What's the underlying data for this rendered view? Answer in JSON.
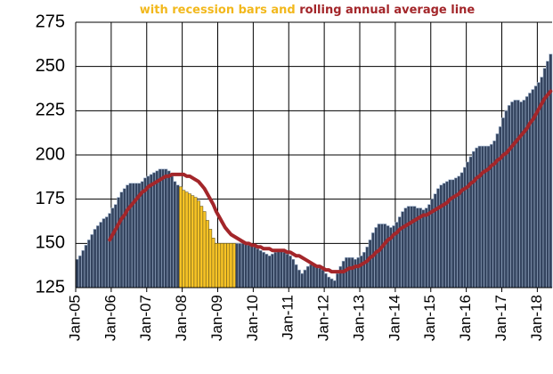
{
  "chart_data": {
    "type": "bar",
    "title": [
      {
        "text": "with recession bars and",
        "color": "#f2b81c"
      },
      {
        "text": "rolling annual average line",
        "color": "#a3262a"
      }
    ],
    "categories": [
      "Jan-05",
      null,
      null,
      null,
      null,
      null,
      null,
      null,
      null,
      null,
      null,
      null,
      "Jan-06",
      null,
      null,
      null,
      null,
      null,
      null,
      null,
      null,
      null,
      null,
      null,
      "Jan-07",
      null,
      null,
      null,
      null,
      null,
      null,
      null,
      null,
      null,
      null,
      null,
      "Jan-08",
      null,
      null,
      null,
      null,
      null,
      null,
      null,
      null,
      null,
      null,
      null,
      "Jan-09",
      null,
      null,
      null,
      null,
      null,
      null,
      null,
      null,
      null,
      null,
      null,
      "Jan-10",
      null,
      null,
      null,
      null,
      null,
      null,
      null,
      null,
      null,
      null,
      null,
      "Jan-11",
      null,
      null,
      null,
      null,
      null,
      null,
      null,
      null,
      null,
      null,
      null,
      "Jan-12",
      null,
      null,
      null,
      null,
      null,
      null,
      null,
      null,
      null,
      null,
      null,
      "Jan-13",
      null,
      null,
      null,
      null,
      null,
      null,
      null,
      null,
      null,
      null,
      null,
      "Jan-14",
      null,
      null,
      null,
      null,
      null,
      null,
      null,
      null,
      null,
      null,
      null,
      "Jan-15",
      null,
      null,
      null,
      null,
      null,
      null,
      null,
      null,
      null,
      null,
      null,
      "Jan-16",
      null,
      null,
      null,
      null,
      null,
      null,
      null,
      null,
      null,
      null,
      null,
      "Jan-17",
      null,
      null,
      null,
      null,
      null,
      null,
      null,
      null,
      null,
      null,
      null,
      "Jan-18",
      null,
      null,
      null,
      null
    ],
    "series": [
      {
        "type": "bar",
        "color": "#34445f",
        "edge": "#9fb2cc",
        "values": [
          141,
          143,
          146,
          149,
          152,
          155,
          158,
          160,
          162,
          164,
          165,
          167,
          170,
          172,
          176,
          179,
          181,
          183,
          184,
          184,
          184,
          184,
          185,
          187,
          188,
          189,
          190,
          191,
          192,
          192,
          192,
          191,
          188,
          185,
          183,
          null,
          null,
          null,
          null,
          null,
          null,
          null,
          null,
          null,
          null,
          null,
          null,
          null,
          null,
          null,
          null,
          null,
          null,
          null,
          150,
          150,
          150,
          150,
          149,
          149,
          148,
          147,
          146,
          145,
          144,
          143,
          144,
          145,
          146,
          146,
          145,
          144,
          143,
          141,
          138,
          135,
          133,
          135,
          137,
          138,
          138,
          137,
          136,
          135,
          133,
          131,
          130,
          129,
          133,
          137,
          140,
          142,
          142,
          142,
          141,
          142,
          143,
          145,
          148,
          152,
          156,
          159,
          161,
          161,
          161,
          160,
          159,
          160,
          162,
          165,
          168,
          170,
          171,
          171,
          171,
          170,
          170,
          169,
          170,
          172,
          175,
          178,
          181,
          183,
          184,
          185,
          186,
          186,
          187,
          188,
          190,
          193,
          196,
          199,
          202,
          204,
          205,
          205,
          205,
          205,
          206,
          208,
          212,
          216,
          221,
          225,
          228,
          230,
          231,
          231,
          230,
          231,
          233,
          235,
          237,
          239,
          241,
          244,
          249,
          253,
          257
        ]
      },
      {
        "type": "bar",
        "color": "#f7c325",
        "edge": "#6b5a1e",
        "values": [
          null,
          null,
          null,
          null,
          null,
          null,
          null,
          null,
          null,
          null,
          null,
          null,
          null,
          null,
          null,
          null,
          null,
          null,
          null,
          null,
          null,
          null,
          null,
          null,
          null,
          null,
          null,
          null,
          null,
          null,
          null,
          null,
          null,
          null,
          null,
          182,
          180,
          179,
          178,
          177,
          176,
          174,
          171,
          168,
          163,
          158,
          153,
          150,
          150,
          150,
          150,
          150,
          150,
          150,
          null,
          null,
          null,
          null,
          null,
          null,
          null,
          null,
          null,
          null,
          null,
          null,
          null,
          null,
          null,
          null,
          null,
          null,
          null,
          null,
          null,
          null,
          null,
          null,
          null,
          null,
          null,
          null,
          null,
          null,
          null,
          null,
          null,
          null,
          null,
          null,
          null,
          null,
          null,
          null,
          null,
          null,
          null,
          null,
          null,
          null,
          null,
          null,
          null,
          null,
          null,
          null,
          null,
          null,
          null,
          null,
          null,
          null,
          null,
          null,
          null,
          null,
          null,
          null,
          null,
          null,
          null,
          null,
          null,
          null,
          null,
          null,
          null,
          null,
          null,
          null,
          null,
          null,
          null,
          null,
          null,
          null,
          null,
          null,
          null,
          null,
          null,
          null,
          null,
          null,
          null,
          null,
          null,
          null,
          null,
          null,
          null,
          null,
          null,
          null,
          null,
          null,
          null,
          null,
          null,
          null,
          null
        ]
      },
      {
        "type": "line",
        "color": "#a3262a",
        "values": [
          null,
          null,
          null,
          null,
          null,
          null,
          null,
          null,
          null,
          null,
          null,
          152,
          155,
          158,
          161,
          164,
          166,
          169,
          171,
          173,
          175,
          177,
          179,
          180,
          182,
          183,
          184,
          185,
          186,
          187,
          188,
          188,
          189,
          189,
          189,
          189,
          189,
          188,
          188,
          187,
          186,
          185,
          183,
          181,
          178,
          175,
          172,
          168,
          165,
          162,
          159,
          157,
          155,
          154,
          153,
          152,
          151,
          150,
          150,
          149,
          149,
          148,
          148,
          147,
          147,
          147,
          146,
          146,
          146,
          146,
          146,
          145,
          145,
          144,
          143,
          143,
          142,
          141,
          140,
          139,
          138,
          137,
          137,
          136,
          135,
          135,
          134,
          134,
          134,
          134,
          134,
          135,
          136,
          136,
          137,
          137,
          138,
          139,
          140,
          142,
          143,
          145,
          146,
          148,
          150,
          152,
          153,
          155,
          156,
          158,
          159,
          160,
          161,
          162,
          163,
          164,
          165,
          166,
          166,
          167,
          168,
          169,
          170,
          171,
          172,
          173,
          175,
          176,
          177,
          178,
          180,
          181,
          182,
          184,
          185,
          187,
          188,
          190,
          191,
          192,
          194,
          195,
          197,
          198,
          200,
          201,
          203,
          205,
          207,
          209,
          211,
          213,
          215,
          218,
          220,
          223,
          226,
          229,
          232,
          234,
          236
        ]
      }
    ],
    "ylim": [
      125,
      275
    ],
    "yticks": [
      125,
      150,
      175,
      200,
      225,
      250,
      275
    ],
    "grid": true
  }
}
